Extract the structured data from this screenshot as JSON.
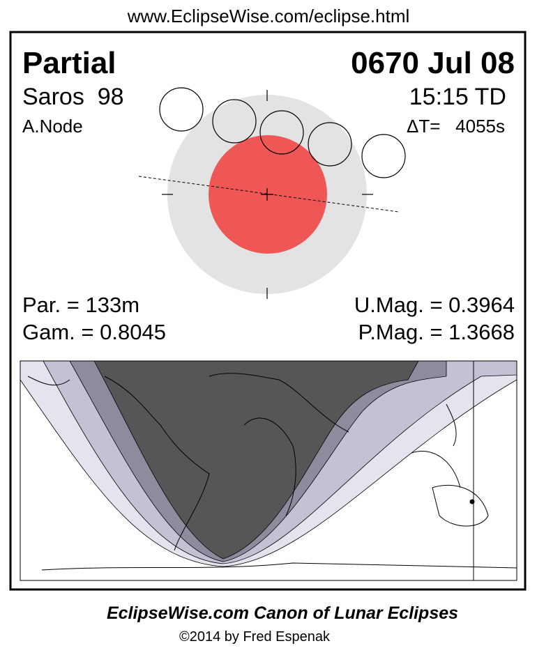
{
  "header": {
    "url": "www.EclipseWise.com/eclipse.html"
  },
  "eclipse": {
    "type": "Partial",
    "date": "0670 Jul 08",
    "saros": "Saros  98",
    "time": "15:15 TD",
    "node": "A.Node",
    "delta_t": "ΔT=   4055s"
  },
  "stats": {
    "par": "Par. = 133m",
    "umag": "U.Mag. = 0.3964",
    "gam": "Gam. = 0.8045",
    "pmag": "P.Mag. = 1.3668"
  },
  "footer": {
    "title": "EclipseWise.com Canon of Lunar Eclipses",
    "copyright": "©2014 by Fred Espenak"
  }
}
